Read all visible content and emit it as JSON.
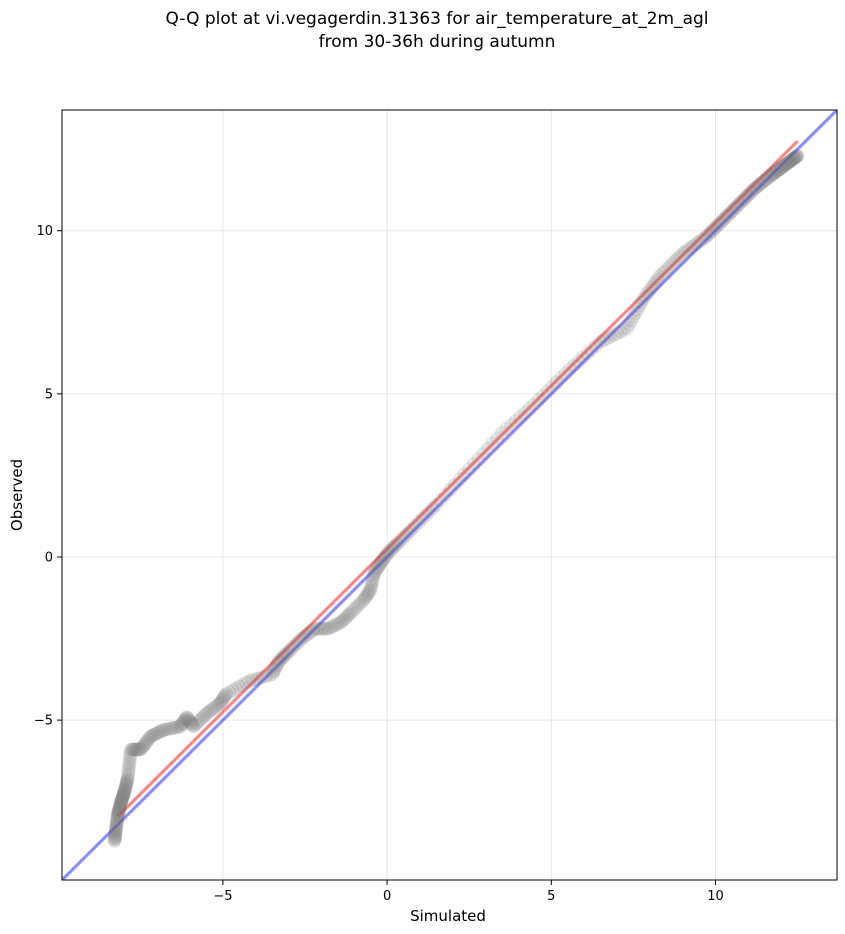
{
  "chart_data": {
    "type": "scatter",
    "title_lines": [
      "Q-Q plot at vi.vegagerdin.31363 for air_temperature_at_2m_agl",
      "from 30-36h during autumn"
    ],
    "xlabel": "Simulated",
    "ylabel": "Observed",
    "xlim": [
      -9.9,
      13.7
    ],
    "ylim": [
      -9.9,
      13.7
    ],
    "xticks": [
      -5,
      0,
      5,
      10
    ],
    "yticks": [
      -5,
      0,
      5,
      10
    ],
    "xtick_labels": [
      "−5",
      "0",
      "5",
      "10"
    ],
    "ytick_labels": [
      "−5",
      "0",
      "5",
      "10"
    ],
    "grid": true,
    "reference_line": {
      "name": "1:1",
      "color": "#0000ff",
      "slope": 1,
      "intercept": 0
    },
    "fit_line": {
      "color": "#ff0000",
      "slope": 1.0,
      "intercept": 0.25,
      "x_range": [
        -8.2,
        12.5
      ]
    },
    "point_color": "#808080",
    "center_color": "#000000",
    "quantile_anchors": {
      "x": [
        -8.3,
        -8.2,
        -8.1,
        -8.0,
        -7.9,
        -7.8,
        -7.5,
        -7.2,
        -6.8,
        -6.3,
        -6.1,
        -5.9,
        -5.5,
        -5.1,
        -4.9,
        -4.2,
        -3.5,
        -3.3,
        -3.0,
        -2.6,
        -2.2,
        -1.8,
        -1.4,
        -1.1,
        -0.7,
        -0.5,
        -0.4,
        -0.2,
        0,
        0.3,
        0.8,
        1.5,
        2.5,
        3.5,
        4.5,
        5.5,
        6.5,
        7.3,
        7.8,
        8.3,
        9.0,
        9.7,
        10.2,
        10.7,
        11.2,
        11.7,
        12.1,
        12.5
      ],
      "y": [
        -8.7,
        -7.9,
        -7.5,
        -7.2,
        -6.8,
        -5.9,
        -5.9,
        -5.5,
        -5.3,
        -5.2,
        -4.9,
        -5.2,
        -4.8,
        -4.5,
        -4.2,
        -3.8,
        -3.6,
        -3.2,
        -2.9,
        -2.5,
        -2.2,
        -2.2,
        -2.0,
        -1.7,
        -1.3,
        -1.0,
        -0.5,
        -0.2,
        0.1,
        0.4,
        0.9,
        1.6,
        2.7,
        3.8,
        4.7,
        5.7,
        6.6,
        7.0,
        7.9,
        8.6,
        9.3,
        9.8,
        10.3,
        10.8,
        11.3,
        11.7,
        12.0,
        12.3
      ]
    },
    "n_points": 420
  }
}
